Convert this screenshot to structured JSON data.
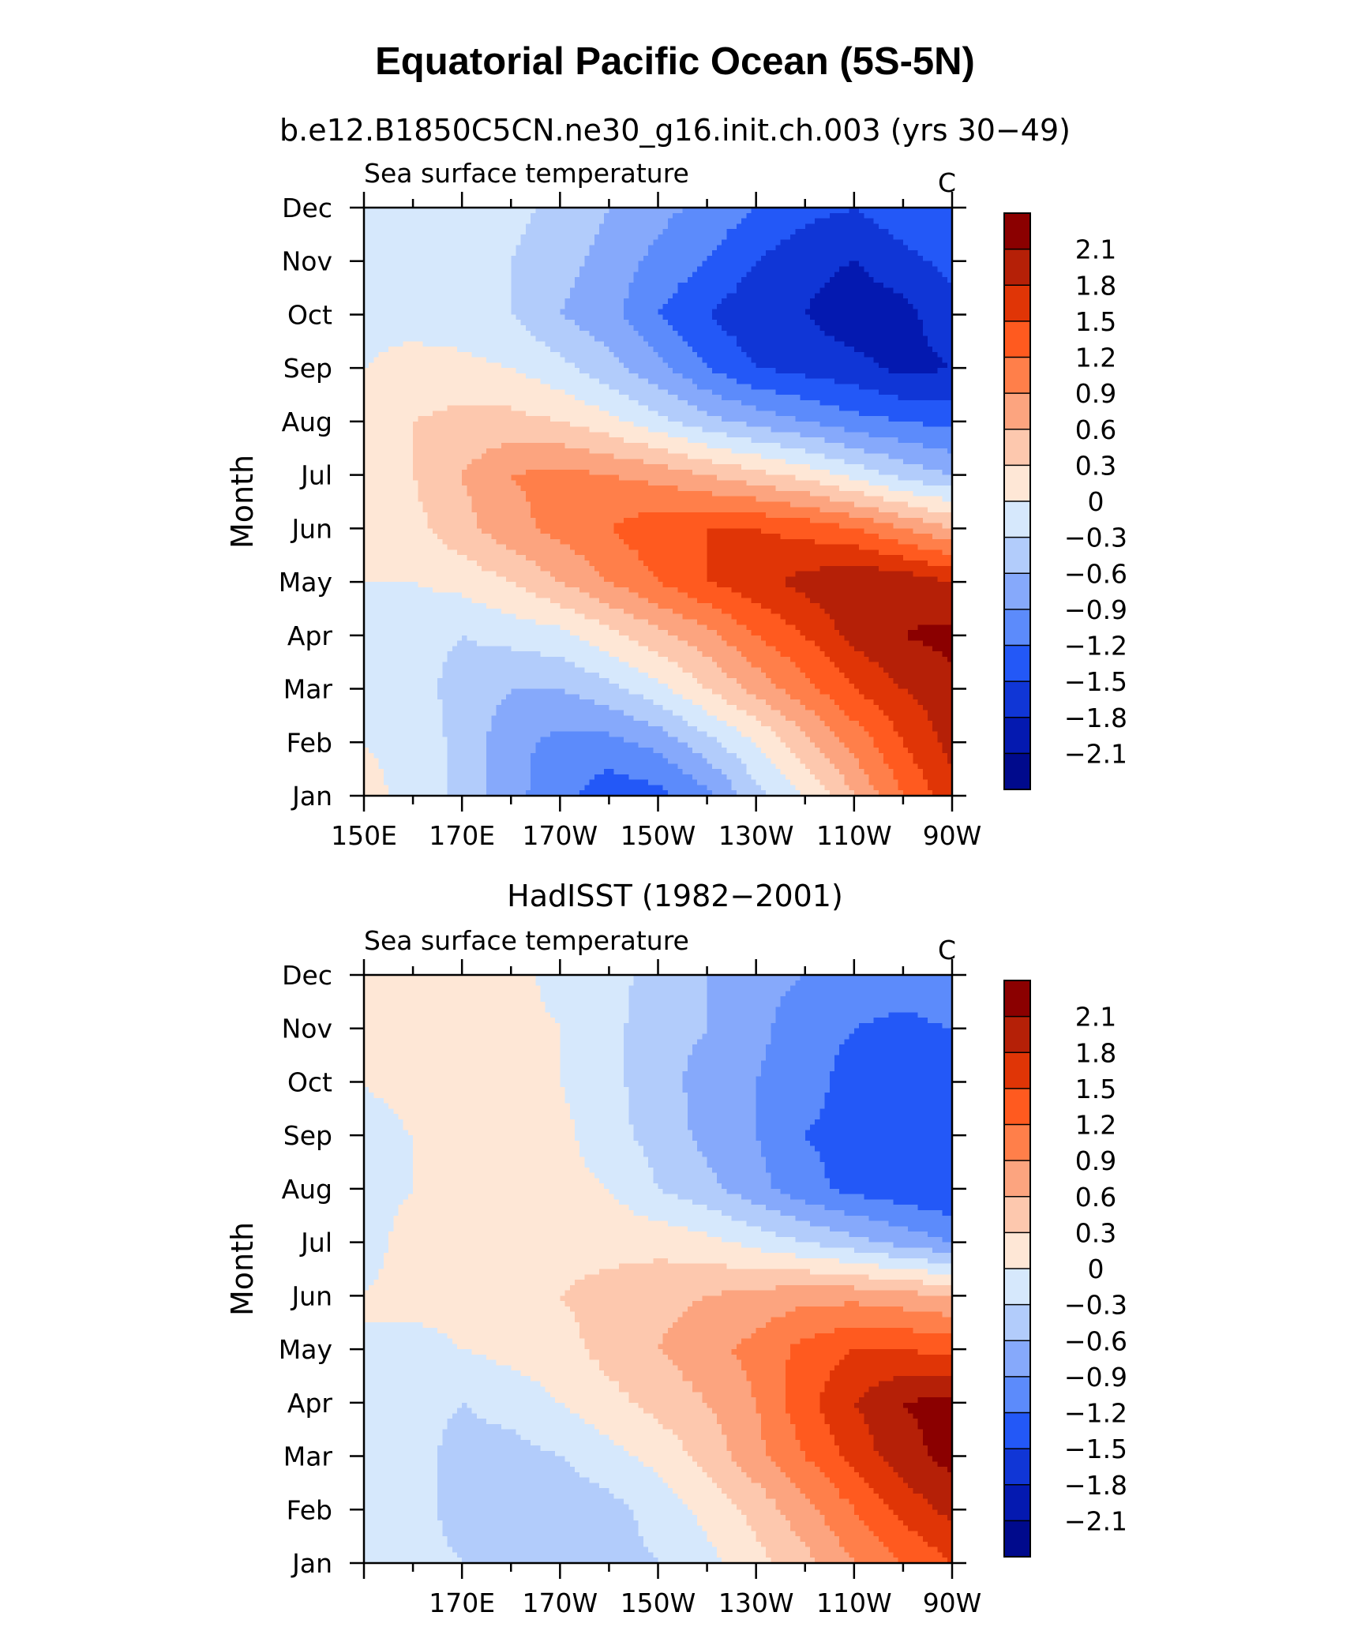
{
  "title": "Equatorial Pacific Ocean (5S-5N)",
  "colorbar": {
    "labels": [
      "2.1",
      "1.8",
      "1.5",
      "1.2",
      "0.9",
      "0.6",
      "0.3",
      "0",
      "−0.3",
      "−0.6",
      "−0.9",
      "−1.2",
      "−1.5",
      "−1.8",
      "−2.1"
    ],
    "colors": [
      "#8b0000",
      "#b52007",
      "#e03506",
      "#ff5a1f",
      "#ff7f4a",
      "#fca47f",
      "#fdc8ae",
      "#fee7d6",
      "#d6e8fc",
      "#b2ccfb",
      "#86a9fb",
      "#5c8bfb",
      "#2358f7",
      "#1036d6",
      "#0419b0",
      "#000a8c"
    ]
  },
  "chart_data": [
    {
      "type": "heatmap",
      "panel_title": "b.e12.B1850C5CN.ne30_g16.init.ch.003 (yrs 30−49)",
      "left_label": "Sea surface temperature",
      "units_label": "C",
      "ylabel": "Month",
      "y_ticks": [
        "Jan",
        "Feb",
        "Mar",
        "Apr",
        "May",
        "Jun",
        "Jul",
        "Aug",
        "Sep",
        "Oct",
        "Nov",
        "Dec"
      ],
      "x_ticks": [
        "150E",
        "170E",
        "170W",
        "150W",
        "130W",
        "110W",
        "90W"
      ],
      "xlim": [
        150,
        270
      ],
      "x_longitudes": [
        150,
        160,
        170,
        180,
        190,
        200,
        210,
        220,
        230,
        240,
        250,
        260,
        270
      ],
      "z": [
        [
          0.1,
          -0.1,
          -0.4,
          -0.8,
          -1.1,
          -1.4,
          -1.3,
          -1.0,
          -0.4,
          0.0,
          0.6,
          1.2,
          1.7
        ],
        [
          0.0,
          -0.1,
          -0.4,
          -0.8,
          -1.0,
          -1.0,
          -0.8,
          -0.4,
          0.0,
          0.5,
          1.0,
          1.5,
          1.9
        ],
        [
          -0.1,
          -0.2,
          -0.4,
          -0.6,
          -0.6,
          -0.4,
          -0.1,
          0.3,
          0.7,
          1.1,
          1.5,
          1.8,
          2.0
        ],
        [
          -0.1,
          -0.2,
          -0.3,
          -0.2,
          -0.1,
          0.2,
          0.5,
          0.8,
          1.2,
          1.5,
          1.9,
          2.1,
          2.2
        ],
        [
          0.0,
          0.0,
          0.1,
          0.3,
          0.6,
          0.9,
          1.2,
          1.5,
          1.7,
          1.9,
          2.1,
          2.0,
          1.8
        ],
        [
          0.1,
          0.2,
          0.5,
          0.8,
          1.0,
          1.2,
          1.4,
          1.5,
          1.5,
          1.4,
          1.2,
          0.9,
          0.6
        ],
        [
          0.1,
          0.3,
          0.6,
          0.9,
          1.0,
          0.9,
          0.8,
          0.6,
          0.4,
          0.2,
          -0.1,
          -0.4,
          -0.6
        ],
        [
          0.1,
          0.3,
          0.4,
          0.4,
          0.3,
          0.1,
          -0.2,
          -0.5,
          -0.7,
          -0.9,
          -1.1,
          -1.2,
          -1.3
        ],
        [
          0.0,
          0.1,
          0.1,
          0.0,
          -0.2,
          -0.5,
          -0.8,
          -1.2,
          -1.5,
          -1.6,
          -1.7,
          -1.9,
          -1.8
        ],
        [
          -0.1,
          -0.1,
          -0.2,
          -0.3,
          -0.6,
          -0.8,
          -1.2,
          -1.5,
          -1.7,
          -1.8,
          -2.0,
          -1.9,
          -1.6
        ],
        [
          -0.1,
          -0.1,
          -0.1,
          -0.3,
          -0.5,
          -0.7,
          -1.0,
          -1.2,
          -1.5,
          -1.7,
          -1.8,
          -1.6,
          -1.4
        ],
        [
          0.0,
          0.0,
          0.0,
          -0.2,
          -0.4,
          -0.6,
          -0.8,
          -1.0,
          -1.2,
          -1.4,
          -1.5,
          -1.3,
          -1.2
        ]
      ]
    },
    {
      "type": "heatmap",
      "panel_title": "HadISST (1982−2001)",
      "left_label": "Sea surface temperature",
      "units_label": "C",
      "ylabel": "Month",
      "y_ticks": [
        "Jan",
        "Feb",
        "Mar",
        "Apr",
        "May",
        "Jun",
        "Jul",
        "Aug",
        "Sep",
        "Oct",
        "Nov",
        "Dec"
      ],
      "x_ticks": [
        "170E",
        "170W",
        "150W",
        "130W",
        "110W",
        "90W"
      ],
      "xlim": [
        150,
        270
      ],
      "x_longitudes": [
        150,
        160,
        170,
        180,
        190,
        200,
        210,
        220,
        230,
        240,
        250,
        260,
        270
      ],
      "z": [
        [
          -0.1,
          -0.2,
          -0.3,
          -0.4,
          -0.5,
          -0.4,
          -0.3,
          -0.1,
          0.2,
          0.5,
          0.9,
          1.2,
          1.5
        ],
        [
          -0.1,
          -0.2,
          -0.4,
          -0.5,
          -0.5,
          -0.4,
          -0.2,
          0.1,
          0.4,
          0.8,
          1.2,
          1.6,
          1.9
        ],
        [
          -0.1,
          -0.2,
          -0.4,
          -0.4,
          -0.3,
          -0.1,
          0.1,
          0.4,
          0.8,
          1.2,
          1.6,
          2.0,
          2.2
        ],
        [
          -0.1,
          -0.2,
          -0.3,
          -0.2,
          0.0,
          0.2,
          0.4,
          0.6,
          0.9,
          1.4,
          1.8,
          2.1,
          2.2
        ],
        [
          0.0,
          -0.1,
          0.0,
          0.1,
          0.2,
          0.4,
          0.6,
          0.8,
          1.0,
          1.3,
          1.5,
          1.5,
          1.4
        ],
        [
          0.0,
          0.1,
          0.1,
          0.2,
          0.3,
          0.4,
          0.5,
          0.6,
          0.7,
          0.8,
          0.8,
          0.7,
          0.6
        ],
        [
          -0.1,
          0.1,
          0.1,
          0.1,
          0.2,
          0.2,
          0.2,
          0.1,
          -0.1,
          -0.3,
          -0.5,
          -0.7,
          -0.9
        ],
        [
          -0.1,
          0.0,
          0.1,
          0.2,
          0.1,
          0.0,
          -0.3,
          -0.5,
          -0.8,
          -1.1,
          -1.3,
          -1.4,
          -1.5
        ],
        [
          -0.1,
          0.0,
          0.2,
          0.3,
          0.1,
          -0.2,
          -0.4,
          -0.7,
          -0.9,
          -1.2,
          -1.3,
          -1.5,
          -1.5
        ],
        [
          0.0,
          0.1,
          0.1,
          0.1,
          0.0,
          -0.2,
          -0.5,
          -0.7,
          -0.9,
          -1.1,
          -1.3,
          -1.5,
          -1.4
        ],
        [
          0.0,
          0.1,
          0.1,
          0.1,
          0.0,
          -0.2,
          -0.5,
          -0.6,
          -0.8,
          -1.1,
          -1.2,
          -1.3,
          -1.2
        ],
        [
          0.0,
          0.1,
          0.1,
          0.1,
          -0.1,
          -0.2,
          -0.4,
          -0.6,
          -0.8,
          -0.9,
          -1.0,
          -1.0,
          -0.9
        ]
      ]
    }
  ]
}
